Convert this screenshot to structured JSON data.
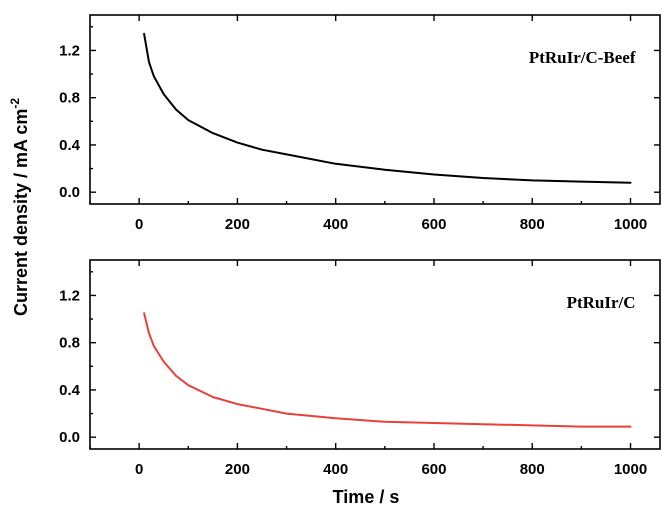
{
  "chart_data": {
    "type": "line",
    "xlabel": "Time / s",
    "ylabel": "Current density / mA cm",
    "ylabel_superscript": "-2",
    "xlim": [
      -100,
      1060
    ],
    "xticks": [
      0,
      200,
      400,
      600,
      800,
      1000
    ],
    "x_tick_labels": [
      "0",
      "200",
      "400",
      "600",
      "800",
      "1000"
    ],
    "yticks": [
      0.0,
      0.4,
      0.8,
      1.2
    ],
    "y_tick_labels": [
      "0.0",
      "0.4",
      "0.8",
      "1.2"
    ],
    "grid": false,
    "panels": [
      {
        "label": "PtRuIr/C-Beef",
        "ylim": [
          -0.1,
          1.5
        ],
        "series": [
          {
            "color": "#000000",
            "x": [
              10,
              20,
              30,
              50,
              75,
              100,
              150,
              200,
              250,
              300,
              400,
              500,
              600,
              700,
              800,
              900,
              1000
            ],
            "y": [
              1.34,
              1.1,
              0.98,
              0.83,
              0.7,
              0.61,
              0.5,
              0.42,
              0.36,
              0.32,
              0.24,
              0.19,
              0.15,
              0.12,
              0.1,
              0.09,
              0.08
            ]
          }
        ]
      },
      {
        "label": "PtRuIr/C",
        "ylim": [
          -0.1,
          1.5
        ],
        "series": [
          {
            "color": "#e8413a",
            "x": [
              10,
              20,
              30,
              50,
              75,
              100,
              150,
              200,
              250,
              300,
              400,
              500,
              600,
              700,
              800,
              900,
              1000
            ],
            "y": [
              1.05,
              0.88,
              0.77,
              0.64,
              0.52,
              0.44,
              0.34,
              0.28,
              0.24,
              0.2,
              0.16,
              0.13,
              0.12,
              0.11,
              0.1,
              0.09,
              0.09
            ]
          }
        ]
      }
    ]
  }
}
